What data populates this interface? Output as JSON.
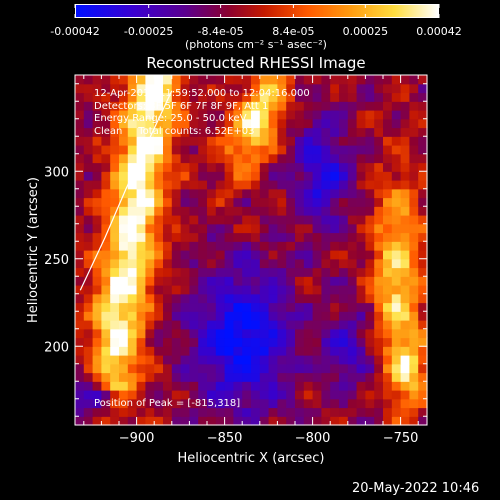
{
  "colorbar": {
    "tick_labels": [
      "-0.00042",
      "-0.00025",
      "-8.4e-05",
      "8.4e-05",
      "0.00025",
      "0.00042"
    ],
    "tick_values": [
      -0.00042,
      -0.00025,
      -8.4e-05,
      8.4e-05,
      0.00025,
      0.00042
    ],
    "units_label": "(photons cm⁻² s⁻¹ asec⁻²)",
    "range": [
      -0.00042,
      0.00042
    ]
  },
  "footer": {
    "date_stamp": "20-May-2022 10:46"
  },
  "info_lines": [
    "12-Apr-2015 11:59:52.000 to 12:04:16.000",
    "Detectors: 3F 5F 6F 7F 8F 9F, Att 1",
    "Energy Range: 25.0 - 50.0 keV",
    "Clean     Total counts: 6.52E+03"
  ],
  "peak_label": "Position of Peak = [-815,318]",
  "chart_data": {
    "type": "heatmap",
    "title": "Reconstructed RHESSI Image",
    "xlabel": "Heliocentric X (arcsec)",
    "ylabel": "Heliocentric Y (arcsec)",
    "xlim": [
      -935,
      -735
    ],
    "ylim": [
      155,
      355
    ],
    "x_ticks": [
      -900,
      -850,
      -800,
      -750
    ],
    "y_ticks": [
      200,
      250,
      300
    ],
    "x_tick_labels": [
      "−900",
      "−850",
      "−800",
      "−750"
    ],
    "y_tick_labels": [
      "200",
      "250",
      "300"
    ],
    "colormap": "red-temperature (blue-purple-red-orange-yellow-white)",
    "peak": [
      -815,
      318
    ],
    "limb": [
      [
        -932,
        232
      ],
      [
        -918,
        262
      ],
      [
        -906,
        290
      ],
      [
        -893,
        318
      ],
      [
        -880,
        346
      ]
    ],
    "grid": false
  }
}
